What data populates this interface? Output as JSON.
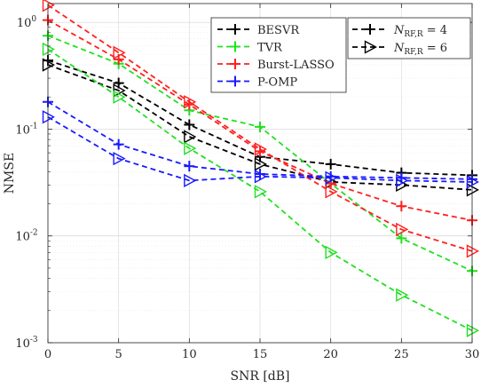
{
  "chart_data": {
    "type": "line",
    "xlabel": "SNR [dB]",
    "ylabel": "NMSE",
    "x": [
      0,
      5,
      10,
      15,
      20,
      25,
      30
    ],
    "xlim": [
      0,
      30
    ],
    "ylim": [
      0.001,
      1.5
    ],
    "yscale": "log",
    "grid": true,
    "x_ticks": [
      "0",
      "5",
      "10",
      "15",
      "20",
      "25",
      "30"
    ],
    "y_ticks": [
      {
        "value": 0.001,
        "base": "10",
        "exp": "-3"
      },
      {
        "value": 0.01,
        "base": "10",
        "exp": "-2"
      },
      {
        "value": 0.1,
        "base": "10",
        "exp": "-1"
      },
      {
        "value": 1,
        "base": "10",
        "exp": "0"
      }
    ],
    "legend_methods": {
      "placement": "top-center",
      "entries": [
        {
          "label": "BESVR",
          "color": "#000000"
        },
        {
          "label": "TVR",
          "color": "#22e022"
        },
        {
          "label": "Burst-LASSO",
          "color": "#ff2020"
        },
        {
          "label": "P-OMP",
          "color": "#1a1aff"
        }
      ]
    },
    "legend_markers": {
      "placement": "top-right",
      "entries": [
        {
          "symbol": "N",
          "subscript": "RF,R",
          "rhs": "= 4",
          "marker": "plus"
        },
        {
          "symbol": "N",
          "subscript": "RF,R",
          "rhs": "= 6",
          "marker": "triangle"
        }
      ]
    },
    "series": [
      {
        "method": "BESVR",
        "marker": "plus",
        "color": "#000000",
        "values": [
          0.44,
          0.27,
          0.11,
          0.055,
          0.047,
          0.039,
          0.037
        ]
      },
      {
        "method": "BESVR",
        "marker": "triangle",
        "color": "#000000",
        "values": [
          0.4,
          0.23,
          0.085,
          0.047,
          0.032,
          0.03,
          0.027
        ]
      },
      {
        "method": "TVR",
        "marker": "plus",
        "color": "#22e022",
        "values": [
          0.75,
          0.41,
          0.15,
          0.105,
          0.031,
          0.0095,
          0.0047
        ]
      },
      {
        "method": "TVR",
        "marker": "triangle",
        "color": "#22e022",
        "values": [
          0.56,
          0.2,
          0.066,
          0.026,
          0.007,
          0.0028,
          0.0013
        ]
      },
      {
        "method": "Burst-LASSO",
        "marker": "plus",
        "color": "#ff2020",
        "values": [
          1.05,
          0.45,
          0.17,
          0.062,
          0.031,
          0.019,
          0.014
        ]
      },
      {
        "method": "Burst-LASSO",
        "marker": "triangle",
        "color": "#ff2020",
        "values": [
          1.45,
          0.52,
          0.18,
          0.065,
          0.026,
          0.0115,
          0.0072
        ]
      },
      {
        "method": "P-OMP",
        "marker": "plus",
        "color": "#1a1aff",
        "values": [
          0.18,
          0.072,
          0.045,
          0.038,
          0.036,
          0.035,
          0.034
        ]
      },
      {
        "method": "P-OMP",
        "marker": "triangle",
        "color": "#1a1aff",
        "values": [
          0.13,
          0.053,
          0.033,
          0.036,
          0.035,
          0.033,
          0.032
        ]
      }
    ]
  }
}
